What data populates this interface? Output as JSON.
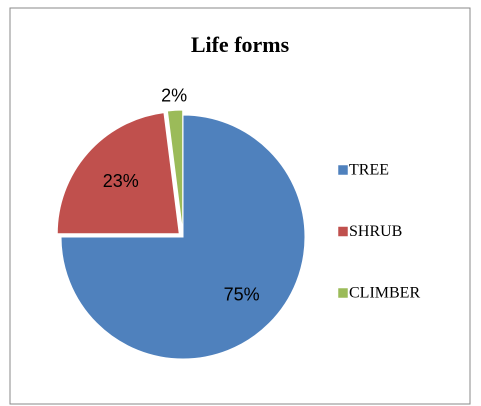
{
  "chart_data": {
    "type": "pie",
    "title": "Life forms",
    "categories": [
      "TREE",
      "SHRUB",
      "CLIMBER"
    ],
    "values": [
      75,
      23,
      2
    ],
    "value_labels": [
      "75%",
      "23%",
      "2%"
    ],
    "colors": [
      "#4f81bd",
      "#c0504d",
      "#9bbb59"
    ],
    "legend": "right"
  }
}
